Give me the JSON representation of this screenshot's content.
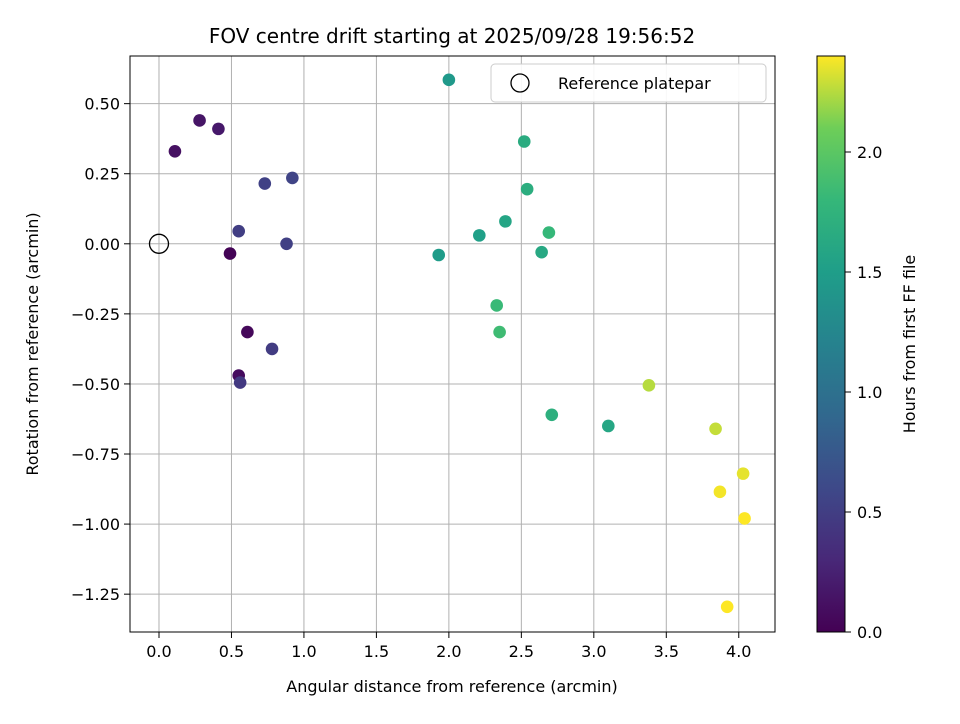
{
  "chart_data": {
    "type": "scatter",
    "title": "FOV centre drift starting at 2025/09/28 19:56:52",
    "xlabel": "Angular distance from reference (arcmin)",
    "ylabel": "Rotation from reference (arcmin)",
    "xlim": [
      -0.2,
      4.25
    ],
    "ylim": [
      -1.385,
      0.67
    ],
    "grid": true,
    "x_ticks": [
      0.0,
      0.5,
      1.0,
      1.5,
      2.0,
      2.5,
      3.0,
      3.5,
      4.0
    ],
    "x_tick_labels": [
      "0.0",
      "0.5",
      "1.0",
      "1.5",
      "2.0",
      "2.5",
      "3.0",
      "3.5",
      "4.0"
    ],
    "y_ticks": [
      0.5,
      0.25,
      0.0,
      -0.25,
      -0.5,
      -0.75,
      -1.0,
      -1.25
    ],
    "y_tick_labels": [
      "0.50",
      "0.25",
      "0.00",
      "−0.25",
      "−0.50",
      "−0.75",
      "−1.00",
      "−1.25"
    ],
    "colorbar": {
      "label": "Hours from first FF file",
      "range": [
        0.0,
        2.4
      ],
      "ticks": [
        0.0,
        0.5,
        1.0,
        1.5,
        2.0
      ],
      "tick_labels": [
        "0.0",
        "0.5",
        "1.0",
        "1.5",
        "2.0"
      ],
      "colormap": "viridis"
    },
    "legend": {
      "placement": "top-right",
      "entries": [
        "Reference platepar"
      ]
    },
    "reference_point": {
      "x": 0.0,
      "y": 0.0,
      "label": "Reference platepar"
    },
    "points": [
      {
        "x": 0.49,
        "y": -0.035,
        "hours": 0.02
      },
      {
        "x": 0.61,
        "y": -0.315,
        "hours": 0.05
      },
      {
        "x": 0.55,
        "y": -0.47,
        "hours": 0.08
      },
      {
        "x": 0.11,
        "y": 0.33,
        "hours": 0.12
      },
      {
        "x": 0.28,
        "y": 0.44,
        "hours": 0.15
      },
      {
        "x": 0.41,
        "y": 0.41,
        "hours": 0.18
      },
      {
        "x": 0.56,
        "y": -0.495,
        "hours": 0.45
      },
      {
        "x": 0.78,
        "y": -0.375,
        "hours": 0.48
      },
      {
        "x": 0.55,
        "y": 0.045,
        "hours": 0.5
      },
      {
        "x": 0.88,
        "y": 0.0,
        "hours": 0.52
      },
      {
        "x": 0.73,
        "y": 0.215,
        "hours": 0.53
      },
      {
        "x": 0.92,
        "y": 0.235,
        "hours": 0.55
      },
      {
        "x": 2.0,
        "y": 0.585,
        "hours": 1.45
      },
      {
        "x": 1.93,
        "y": -0.04,
        "hours": 1.48
      },
      {
        "x": 2.21,
        "y": 0.03,
        "hours": 1.52
      },
      {
        "x": 2.39,
        "y": 0.08,
        "hours": 1.58
      },
      {
        "x": 2.64,
        "y": -0.03,
        "hours": 1.62
      },
      {
        "x": 2.52,
        "y": 0.365,
        "hours": 1.66
      },
      {
        "x": 2.54,
        "y": 0.195,
        "hours": 1.68
      },
      {
        "x": 3.1,
        "y": -0.65,
        "hours": 1.6
      },
      {
        "x": 2.71,
        "y": -0.61,
        "hours": 1.7
      },
      {
        "x": 2.69,
        "y": 0.04,
        "hours": 1.8
      },
      {
        "x": 2.33,
        "y": -0.22,
        "hours": 1.82
      },
      {
        "x": 2.35,
        "y": -0.315,
        "hours": 1.85
      },
      {
        "x": 3.38,
        "y": -0.505,
        "hours": 2.25
      },
      {
        "x": 3.84,
        "y": -0.66,
        "hours": 2.28
      },
      {
        "x": 4.03,
        "y": -0.82,
        "hours": 2.35
      },
      {
        "x": 3.87,
        "y": -0.885,
        "hours": 2.38
      },
      {
        "x": 4.04,
        "y": -0.98,
        "hours": 2.4
      },
      {
        "x": 3.92,
        "y": -1.295,
        "hours": 2.4
      }
    ]
  }
}
